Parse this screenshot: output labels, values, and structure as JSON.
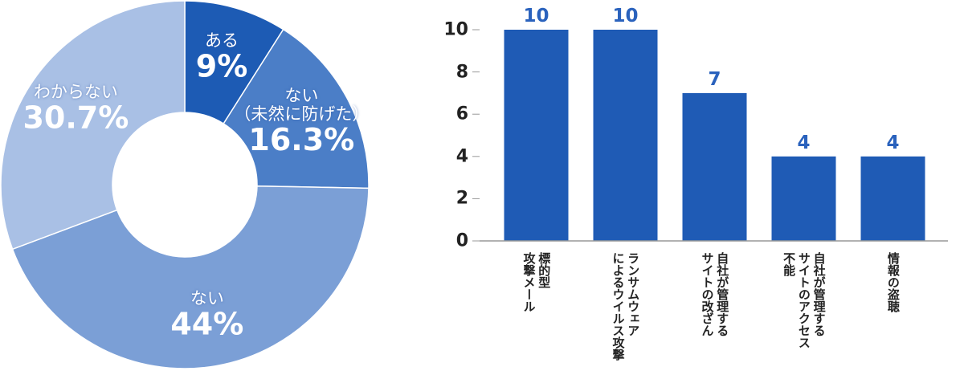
{
  "chart_data": [
    {
      "type": "donut",
      "categories": [
        "ある",
        "ない\n（未然に防げた）",
        "ない",
        "わからない"
      ],
      "values": [
        9,
        16.3,
        44,
        30.7
      ],
      "value_labels": [
        "9%",
        "16.3%",
        "44%",
        "30.7%"
      ],
      "colors": [
        "#1d5bb4",
        "#4b7ec7",
        "#7b9fd6",
        "#a9c0e5"
      ]
    },
    {
      "type": "bar",
      "categories": [
        "標的型\n攻撃メール",
        "ランサムウェア\nによるウイルス攻撃",
        "自社が管理する\nサイトの改ざん",
        "自社が管理する\nサイトのアクセス\n不能",
        "情報の盗聴"
      ],
      "values": [
        10,
        10,
        7,
        4,
        4
      ],
      "color": "#1f5bb5",
      "ylim": [
        0,
        10
      ],
      "yticks": [
        0,
        2,
        4,
        6,
        8,
        10
      ]
    }
  ]
}
